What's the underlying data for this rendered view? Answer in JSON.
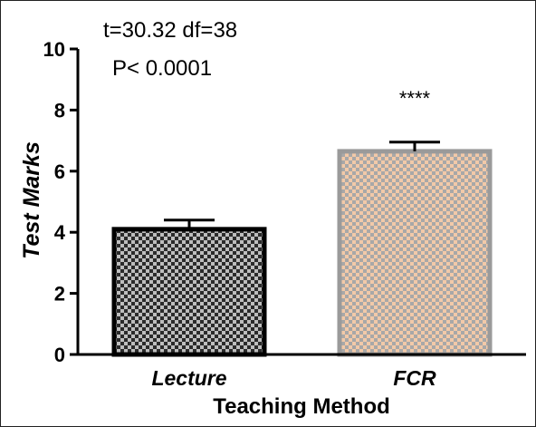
{
  "chart_data": {
    "type": "bar",
    "categories": [
      "Lecture",
      "FCR"
    ],
    "values": [
      4.1,
      6.65
    ],
    "errors": [
      0.3,
      0.3
    ],
    "significance": [
      "",
      "****"
    ],
    "xlabel": "Teaching Method",
    "ylabel": "Test Marks",
    "ylim": [
      0,
      10
    ],
    "yticks": [
      0,
      2,
      4,
      6,
      8,
      10
    ],
    "annotations": [
      "t=30.32 df=38",
      "P< 0.0001"
    ],
    "colors": {
      "lecture_fill": "#2b2b2b",
      "lecture_check": "#bdbdbd",
      "fcr_fill": "#f2c9a8",
      "fcr_check": "#a8a8a8",
      "fcr_border": "#9a9a9a",
      "lecture_border": "#000000"
    }
  }
}
